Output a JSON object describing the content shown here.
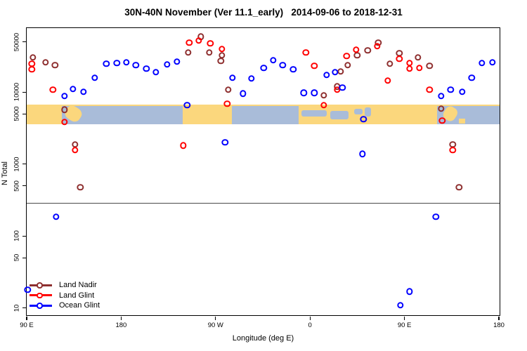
{
  "title": "30N-40N November (Ver 11.1_early)   2014-09-06 to 2018-12-31",
  "chart_data": {
    "type": "scatter",
    "title": "30N-40N November (Ver 11.1_early)   2014-09-06 to 2018-12-31",
    "xlabel": "Longitude (deg E)",
    "ylabel": "N Total",
    "y_scale": "log10",
    "ylim": [
      8,
      78000
    ],
    "xlim_deg_east_of_0": [
      90,
      540
    ],
    "x_axis_note": "axis spans 450 deg of longitude eastward from 90E, so 90E-180 repeats",
    "grid": false,
    "legend_position": "bottom-left",
    "x_ticks": [
      {
        "value": 90,
        "label": "90 E"
      },
      {
        "value": 180,
        "label": "180"
      },
      {
        "value": 270,
        "label": "90 W"
      },
      {
        "value": 360,
        "label": "0"
      },
      {
        "value": 450,
        "label": "90 E"
      },
      {
        "value": 540,
        "label": "180"
      }
    ],
    "y_ticks": [
      {
        "value": 50000,
        "label": "50000"
      },
      {
        "value": 10000,
        "label": "10000"
      },
      {
        "value": 5000,
        "label": "5000"
      },
      {
        "value": 1000,
        "label": "1000"
      },
      {
        "value": 500,
        "label": "500"
      },
      {
        "value": 100,
        "label": "100"
      },
      {
        "value": 50,
        "label": "50"
      },
      {
        "value": 10,
        "label": "10"
      }
    ],
    "reference_line": {
      "N": 290,
      "color": "#4a4a4a"
    },
    "map_band": {
      "description": "land/ocean world strip for the 30N-40N latitude zone",
      "N_top": 6700,
      "N_bottom": 3600,
      "land_color": "#FBD77D",
      "ocean_color": "#A9BCD9",
      "land_segments": [
        {
          "lon": [
            90,
            123.5
          ],
          "y": [
            0,
            1
          ],
          "rot": false
        },
        {
          "lon": [
            127,
            142.5
          ],
          "y": [
            0.12,
            0.82
          ],
          "rot": true
        },
        {
          "lon": [
            238.5,
            285.5
          ],
          "y": [
            0,
            1
          ],
          "rot": false
        },
        {
          "lon": [
            349,
            481
          ],
          "y": [
            0,
            1
          ],
          "rot": false
        },
        {
          "lon": [
            488,
            500
          ],
          "y": [
            0.12,
            0.82
          ],
          "rot": true
        },
        {
          "lon": [
            502,
            508
          ],
          "y": [
            0.72,
            0.95
          ],
          "rot": false
        }
      ],
      "water_insets": [
        {
          "lon": [
            352,
            376
          ],
          "y": [
            0.3,
            0.62
          ]
        },
        {
          "lon": [
            379,
            397
          ],
          "y": [
            0.33,
            0.76
          ]
        },
        {
          "lon": [
            402,
            410
          ],
          "y": [
            0.2,
            0.5
          ]
        },
        {
          "lon": [
            412,
            418
          ],
          "y": [
            0.14,
            0.6
          ]
        }
      ]
    },
    "series": [
      {
        "name": "Land Nadir",
        "color": "#8E2F2F",
        "marker": "open-circle",
        "points": [
          [
            96,
            30300
          ],
          [
            108,
            25900
          ],
          [
            117,
            23600
          ],
          [
            126,
            5700
          ],
          [
            136,
            1870
          ],
          [
            141,
            474
          ],
          [
            244,
            35400
          ],
          [
            256,
            59000
          ],
          [
            264,
            35400
          ],
          [
            276,
            32400
          ],
          [
            275,
            27100
          ],
          [
            282,
            10800
          ],
          [
            373,
            9000
          ],
          [
            386,
            12000
          ],
          [
            389,
            19300
          ],
          [
            396,
            23600
          ],
          [
            405,
            32400
          ],
          [
            415,
            37900
          ],
          [
            425,
            48500
          ],
          [
            436,
            24700
          ],
          [
            445,
            34600
          ],
          [
            463,
            30300
          ],
          [
            474,
            23100
          ],
          [
            485,
            5900
          ],
          [
            496,
            1870
          ],
          [
            502,
            474
          ]
        ]
      },
      {
        "name": "Land Glint",
        "color": "#FF0000",
        "marker": "open-circle",
        "points": [
          [
            95,
            24700
          ],
          [
            95,
            20700
          ],
          [
            115,
            10800
          ],
          [
            126,
            3830
          ],
          [
            136,
            1560
          ],
          [
            239,
            1820
          ],
          [
            245,
            49000
          ],
          [
            254,
            51900
          ],
          [
            265,
            47400
          ],
          [
            276,
            39700
          ],
          [
            281,
            6900
          ],
          [
            356,
            35400
          ],
          [
            364,
            23100
          ],
          [
            373,
            6600
          ],
          [
            386,
            10800
          ],
          [
            395,
            31600
          ],
          [
            404,
            38700
          ],
          [
            424,
            43300
          ],
          [
            434,
            14400
          ],
          [
            445,
            28900
          ],
          [
            455,
            25300
          ],
          [
            455,
            21100
          ],
          [
            464,
            21600
          ],
          [
            474,
            10800
          ],
          [
            486,
            4010
          ],
          [
            496,
            1560
          ]
        ]
      },
      {
        "name": "Ocean Glint",
        "color": "#0000FF",
        "marker": "open-circle",
        "points": [
          [
            91,
            18
          ],
          [
            118,
            185
          ],
          [
            126,
            8800
          ],
          [
            134,
            11000
          ],
          [
            144,
            10100
          ],
          [
            155,
            15800
          ],
          [
            166,
            24700
          ],
          [
            176,
            25300
          ],
          [
            185,
            25900
          ],
          [
            194,
            23600
          ],
          [
            204,
            21100
          ],
          [
            213,
            18900
          ],
          [
            224,
            24200
          ],
          [
            233,
            26500
          ],
          [
            243,
            6600
          ],
          [
            279,
            2000
          ],
          [
            286,
            15800
          ],
          [
            296,
            9600
          ],
          [
            304,
            15400
          ],
          [
            316,
            21600
          ],
          [
            325,
            27700
          ],
          [
            334,
            23600
          ],
          [
            344,
            20700
          ],
          [
            354,
            9800
          ],
          [
            364,
            9800
          ],
          [
            376,
            17300
          ],
          [
            384,
            18900
          ],
          [
            391,
            11500
          ],
          [
            410,
            1390
          ],
          [
            411,
            4190
          ],
          [
            446,
            11
          ],
          [
            455,
            17
          ],
          [
            480,
            185
          ],
          [
            485,
            8800
          ],
          [
            494,
            10800
          ],
          [
            505,
            10100
          ],
          [
            514,
            15800
          ],
          [
            524,
            25300
          ],
          [
            534,
            25900
          ]
        ]
      }
    ]
  },
  "legend": {
    "items": [
      {
        "label": "Land Nadir",
        "color": "#8E2F2F"
      },
      {
        "label": "Land Glint",
        "color": "#FF0000"
      },
      {
        "label": "Ocean Glint",
        "color": "#0000FF"
      }
    ]
  }
}
